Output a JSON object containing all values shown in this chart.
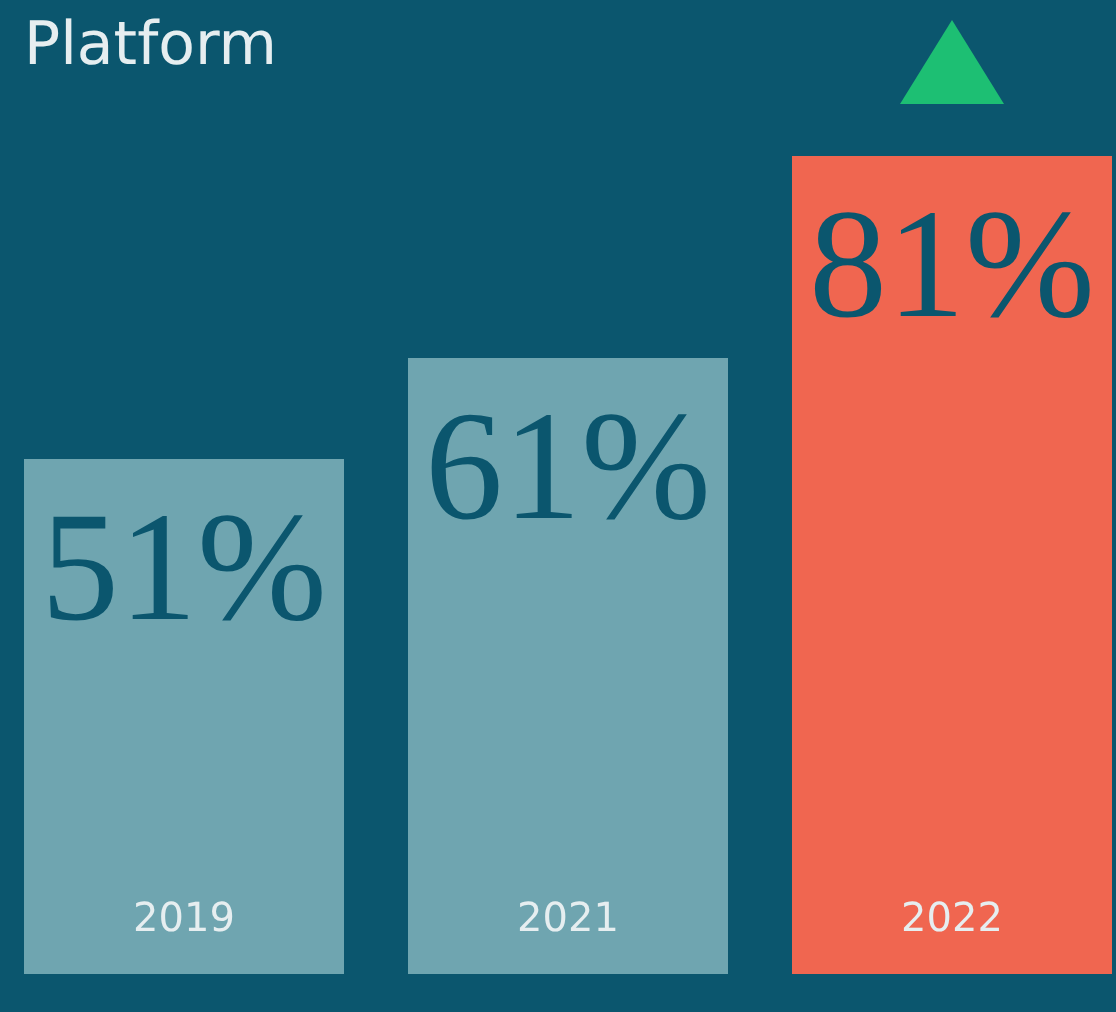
{
  "chart_data": {
    "type": "bar",
    "title": "Platform",
    "categories": [
      "2019",
      "2021",
      "2022"
    ],
    "values": [
      51,
      61,
      81
    ],
    "colors": [
      "#6fa5b0",
      "#6fa5b0",
      "#f06650"
    ],
    "value_labels": [
      "51%",
      "61%",
      "81%"
    ]
  }
}
